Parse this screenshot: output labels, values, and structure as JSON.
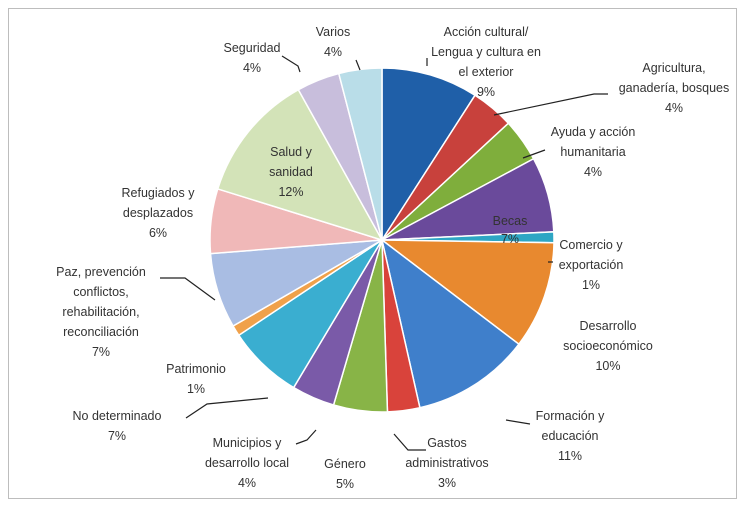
{
  "chart_data": {
    "type": "pie",
    "title": "",
    "unit": "%",
    "slices": [
      {
        "label": "Acción cultural/ Lengua y cultura en el exterior",
        "value": 9,
        "value_label": "9%",
        "color": "#1f5fa8"
      },
      {
        "label": "Agricultura, ganadería, bosques",
        "value": 4,
        "value_label": "4%",
        "color": "#c8413c"
      },
      {
        "label": "Ayuda y acción humanitaria",
        "value": 4,
        "value_label": "4%",
        "color": "#7fae3c"
      },
      {
        "label": "Becas",
        "value": 7,
        "value_label": "7%",
        "color": "#6a4a9b"
      },
      {
        "label": "Comercio y exportación",
        "value": 1,
        "value_label": "1%",
        "color": "#2ea6c4"
      },
      {
        "label": "Desarrollo socioeconómico",
        "value": 10,
        "value_label": "10%",
        "color": "#e8892f"
      },
      {
        "label": "Formación y educación",
        "value": 11,
        "value_label": "11%",
        "color": "#3f7fcb"
      },
      {
        "label": "Gastos administrativos",
        "value": 3,
        "value_label": "3%",
        "color": "#d9433b"
      },
      {
        "label": "Género",
        "value": 5,
        "value_label": "5%",
        "color": "#88b447"
      },
      {
        "label": "Municipios y desarrollo local",
        "value": 4,
        "value_label": "4%",
        "color": "#7a5aa8"
      },
      {
        "label": "No determinado",
        "value": 7,
        "value_label": "7%",
        "color": "#3aaed0"
      },
      {
        "label": "Patrimonio",
        "value": 1,
        "value_label": "1%",
        "color": "#f0a14a"
      },
      {
        "label": "Paz, prevención conflictos, rehabilitación, reconciliación",
        "value": 7,
        "value_label": "7%",
        "color": "#a9bde3"
      },
      {
        "label": "Refugiados y desplazados",
        "value": 6,
        "value_label": "6%",
        "color": "#f0b8b8"
      },
      {
        "label": "Salud y sanidad",
        "value": 12,
        "value_label": "12%",
        "color": "#d3e3b8"
      },
      {
        "label": "Seguridad",
        "value": 4,
        "value_label": "4%",
        "color": "#c8bedc"
      },
      {
        "label": "Varios",
        "value": 4,
        "value_label": "4%",
        "color": "#b9dde8"
      }
    ],
    "legend": "none"
  }
}
